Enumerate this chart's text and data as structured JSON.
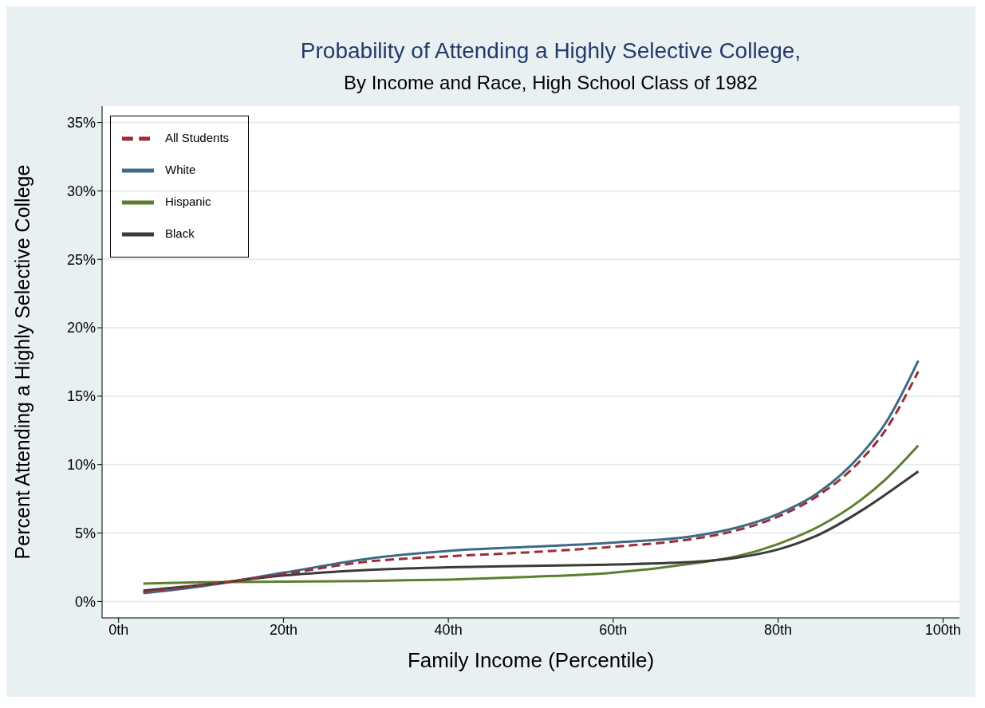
{
  "chart_data": {
    "type": "line",
    "title": "Probability of Attending a Highly Selective College,",
    "subtitle": "By Income and Race, High School Class of 1982",
    "xlabel": "Family Income (Percentile)",
    "ylabel": "Percent Attending a Highly Selective College",
    "x": [
      3,
      10,
      20,
      30,
      40,
      50,
      60,
      70,
      75,
      80,
      85,
      90,
      93,
      97
    ],
    "series": [
      {
        "name": "All Students",
        "color": "#9b2d35",
        "line_style": "dashed",
        "values": [
          0.7,
          1.2,
          2.0,
          2.9,
          3.3,
          3.6,
          4.0,
          4.6,
          5.2,
          6.2,
          7.8,
          10.3,
          12.5,
          16.8
        ]
      },
      {
        "name": "White",
        "color": "#3d6a85",
        "line_style": "solid",
        "values": [
          0.6,
          1.1,
          2.1,
          3.1,
          3.7,
          4.0,
          4.3,
          4.8,
          5.4,
          6.4,
          8.0,
          10.7,
          13.0,
          17.6
        ]
      },
      {
        "name": "Hispanic",
        "color": "#5b7f2e",
        "line_style": "solid",
        "values": [
          1.3,
          1.4,
          1.45,
          1.5,
          1.6,
          1.8,
          2.1,
          2.8,
          3.3,
          4.2,
          5.5,
          7.4,
          8.9,
          11.4
        ]
      },
      {
        "name": "Black",
        "color": "#3a3a3a",
        "line_style": "solid",
        "values": [
          0.8,
          1.2,
          1.9,
          2.3,
          2.5,
          2.6,
          2.7,
          2.9,
          3.2,
          3.8,
          4.9,
          6.6,
          7.8,
          9.5
        ]
      }
    ],
    "xlim": [
      -2,
      102
    ],
    "xticks": [
      {
        "value": 0,
        "label": "0th"
      },
      {
        "value": 20,
        "label": "20th"
      },
      {
        "value": 40,
        "label": "40th"
      },
      {
        "value": 60,
        "label": "60th"
      },
      {
        "value": 80,
        "label": "80th"
      },
      {
        "value": 100,
        "label": "100th"
      }
    ],
    "ylim": [
      -1.2,
      36.2
    ],
    "yticks": [
      {
        "value": 0,
        "label": "0%"
      },
      {
        "value": 5,
        "label": "5%"
      },
      {
        "value": 10,
        "label": "10%"
      },
      {
        "value": 15,
        "label": "15%"
      },
      {
        "value": 20,
        "label": "20%"
      },
      {
        "value": 25,
        "label": "25%"
      },
      {
        "value": 30,
        "label": "30%"
      },
      {
        "value": 35,
        "label": "35%"
      }
    ],
    "grid": "y",
    "legend": "top left",
    "marker": "none"
  }
}
